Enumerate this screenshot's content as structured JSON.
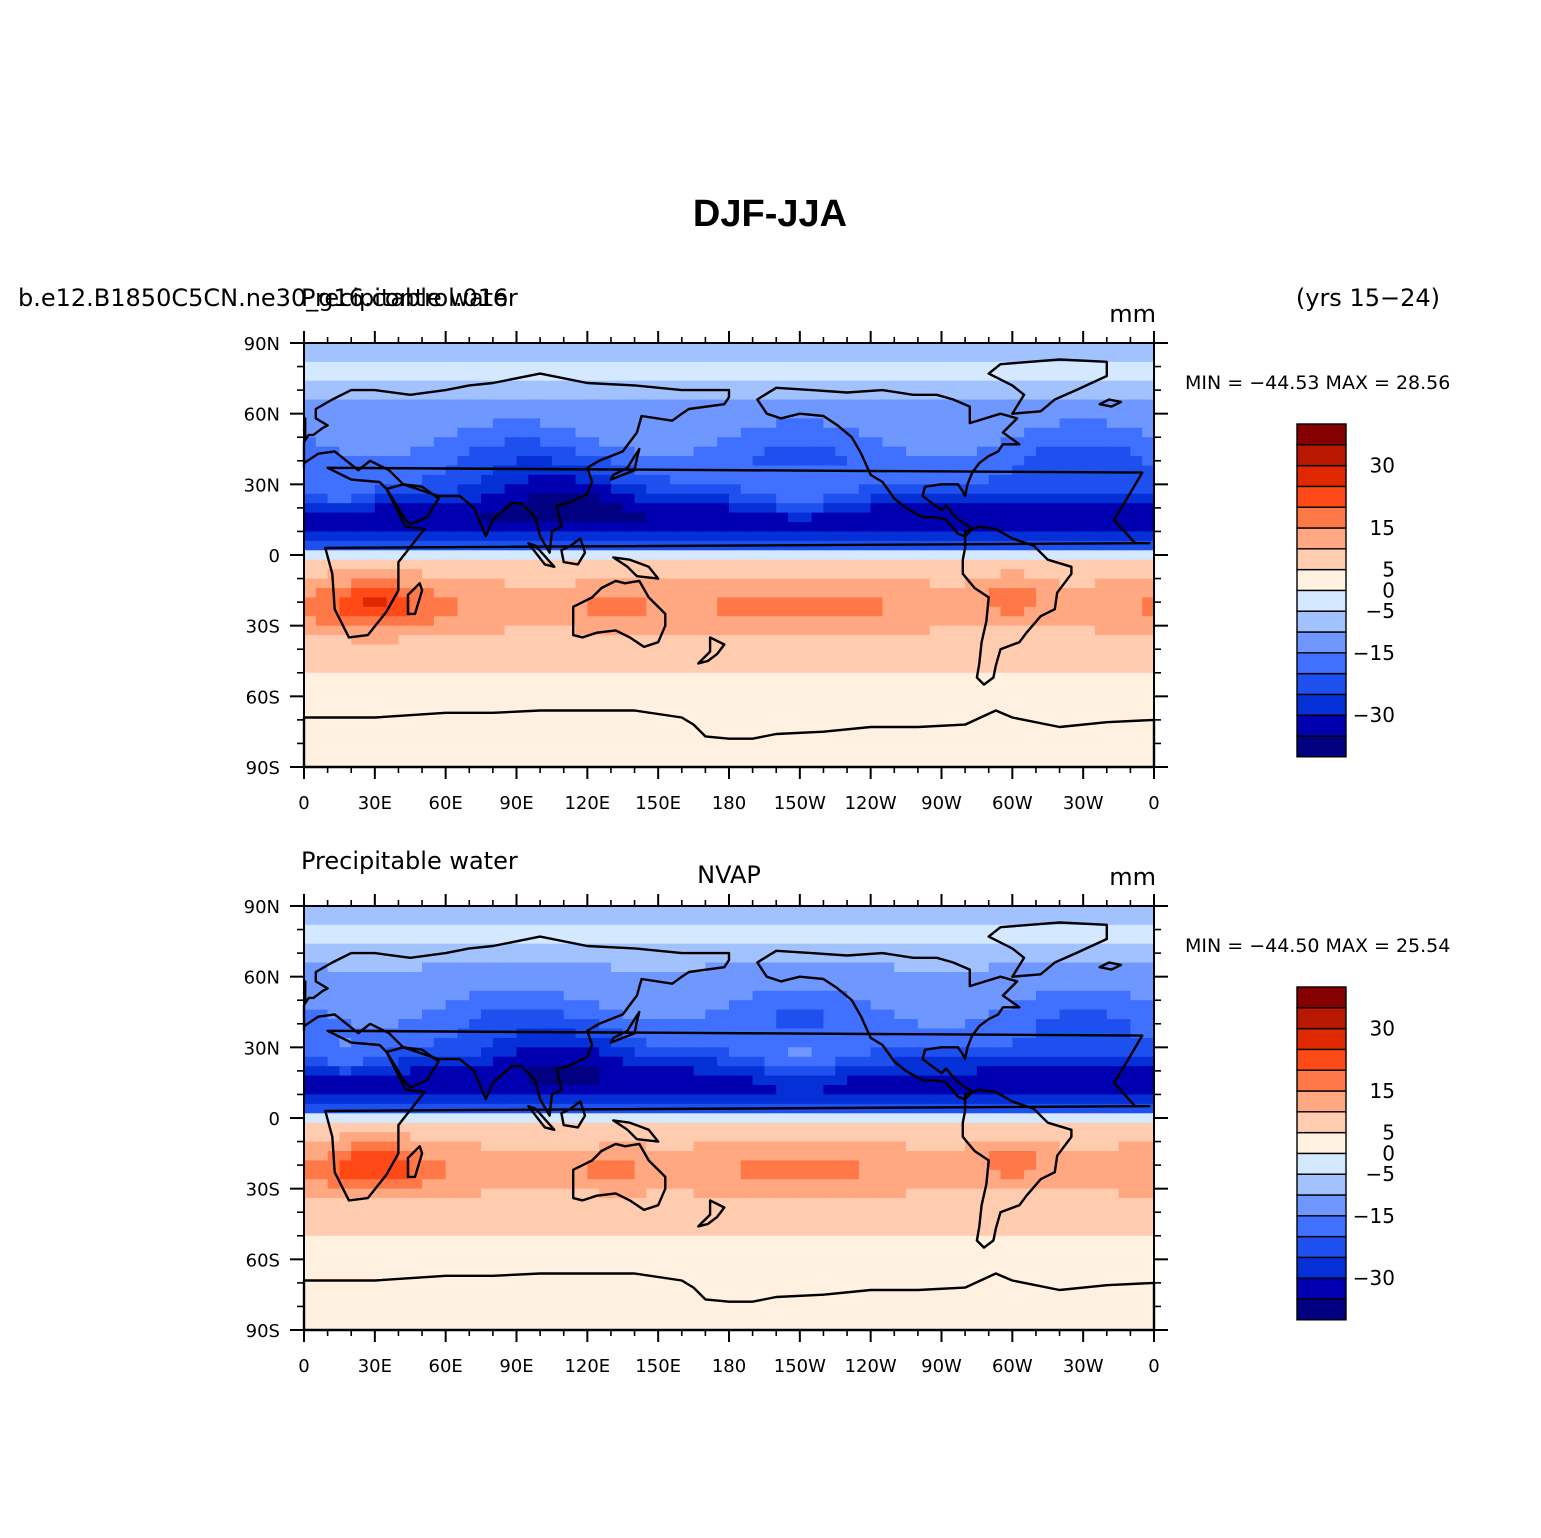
{
  "title": "DJF-JJA",
  "colorbar": {
    "colors": [
      "#000080",
      "#0000b0",
      "#0530d8",
      "#1e50f0",
      "#4070ff",
      "#6e98ff",
      "#a2c2ff",
      "#d4e8ff",
      "#fff0e0",
      "#ffccb0",
      "#ffa882",
      "#ff7848",
      "#ff4a18",
      "#e02800",
      "#b81800",
      "#860000"
    ],
    "labels": [
      "30",
      "15",
      "5",
      "0",
      "−5",
      "−15",
      "−30"
    ]
  },
  "panels": [
    {
      "id": "model",
      "left_title": "b.e12.B1850C5CN.ne30_g16.control.016",
      "left_title_overlay": "Precipitable water",
      "center_title": "",
      "units": "mm",
      "right_title": "(yrs 15−24)",
      "stats": {
        "min_label": "MIN =",
        "min": "−44.53",
        "max_label": "MAX =",
        "max": "28.56"
      },
      "chart_data": {
        "type": "heatmap",
        "variable": "Precipitable water",
        "units": "mm",
        "xlim": [
          0,
          360
        ],
        "ylim": [
          -90,
          90
        ],
        "zlim": [
          -44.53,
          28.56
        ],
        "x_ticks": [
          "0",
          "30E",
          "60E",
          "90E",
          "120E",
          "150E",
          "180",
          "150W",
          "120W",
          "90W",
          "60W",
          "30W",
          "0"
        ],
        "y_ticks": [
          "90N",
          "60N",
          "30N",
          "0",
          "30S",
          "60S",
          "90S"
        ]
      }
    },
    {
      "id": "obs",
      "left_title": "Precipitable water",
      "left_title_overlay": "",
      "center_title": "NVAP",
      "units": "mm",
      "right_title": "",
      "stats": {
        "min_label": "MIN =",
        "min": "−44.50",
        "max_label": "MAX =",
        "max": "25.54"
      },
      "chart_data": {
        "type": "heatmap",
        "variable": "Precipitable water",
        "units": "mm",
        "xlim": [
          0,
          360
        ],
        "ylim": [
          -90,
          90
        ],
        "zlim": [
          -44.5,
          25.54
        ],
        "x_ticks": [
          "0",
          "30E",
          "60E",
          "90E",
          "120E",
          "150E",
          "180",
          "150W",
          "120W",
          "90W",
          "60W",
          "30W",
          "0"
        ],
        "y_ticks": [
          "90N",
          "60N",
          "30N",
          "0",
          "30S",
          "60S",
          "90S"
        ]
      }
    }
  ]
}
